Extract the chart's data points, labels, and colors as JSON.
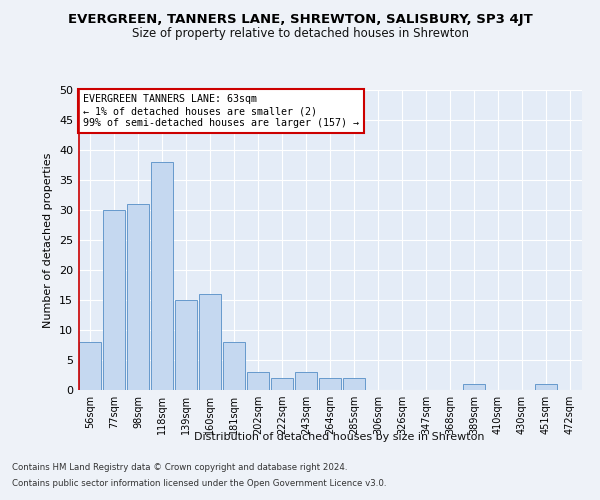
{
  "title": "EVERGREEN, TANNERS LANE, SHREWTON, SALISBURY, SP3 4JT",
  "subtitle": "Size of property relative to detached houses in Shrewton",
  "xlabel": "Distribution of detached houses by size in Shrewton",
  "ylabel": "Number of detached properties",
  "categories": [
    "56sqm",
    "77sqm",
    "98sqm",
    "118sqm",
    "139sqm",
    "160sqm",
    "181sqm",
    "202sqm",
    "222sqm",
    "243sqm",
    "264sqm",
    "285sqm",
    "306sqm",
    "326sqm",
    "347sqm",
    "368sqm",
    "389sqm",
    "410sqm",
    "430sqm",
    "451sqm",
    "472sqm"
  ],
  "values": [
    8,
    30,
    31,
    38,
    15,
    16,
    8,
    3,
    2,
    3,
    2,
    2,
    0,
    0,
    0,
    0,
    1,
    0,
    0,
    1,
    0
  ],
  "bar_color": "#c5d8f0",
  "bar_edge_color": "#6699cc",
  "ylim": [
    0,
    50
  ],
  "yticks": [
    0,
    5,
    10,
    15,
    20,
    25,
    30,
    35,
    40,
    45,
    50
  ],
  "annotation_box_text": [
    "EVERGREEN TANNERS LANE: 63sqm",
    "← 1% of detached houses are smaller (2)",
    "99% of semi-detached houses are larger (157) →"
  ],
  "annotation_box_color": "#ffffff",
  "annotation_box_edge_color": "#cc0000",
  "footer_line1": "Contains HM Land Registry data © Crown copyright and database right 2024.",
  "footer_line2": "Contains public sector information licensed under the Open Government Licence v3.0.",
  "background_color": "#eef2f8",
  "plot_bg_color": "#e4ecf7"
}
